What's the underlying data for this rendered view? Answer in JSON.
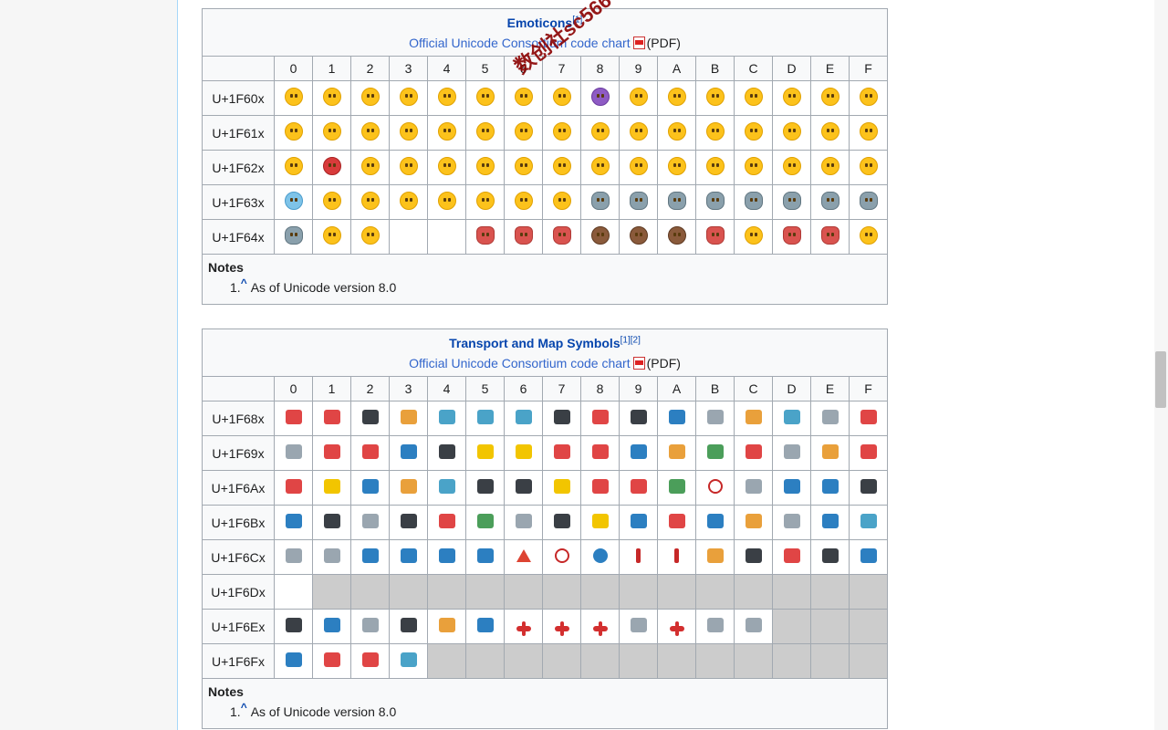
{
  "emoticons": {
    "title": "Emoticons",
    "title_refs": "[1]",
    "chart_link": "Official Unicode Consortium code chart",
    "pdf": "(PDF)",
    "columns": [
      "0",
      "1",
      "2",
      "3",
      "4",
      "5",
      "6",
      "7",
      "8",
      "9",
      "A",
      "B",
      "C",
      "D",
      "E",
      "F"
    ],
    "rows": [
      {
        "label": "U+1F60x",
        "cells": [
          "smile",
          "smile",
          "joy",
          "smile",
          "smile",
          "smile",
          "smile",
          "halo",
          "purple",
          "smile",
          "smile",
          "smile",
          "smile",
          "smile",
          "smile",
          "smile"
        ]
      },
      {
        "label": "U+1F61x",
        "cells": [
          "smile",
          "smile",
          "smile",
          "smile",
          "smile",
          "smile",
          "smile",
          "smile",
          "smile",
          "smile",
          "smile",
          "smile",
          "smile",
          "smile",
          "smile",
          "smile"
        ]
      },
      {
        "label": "U+1F62x",
        "cells": [
          "smile",
          "red",
          "smile",
          "smile",
          "smile",
          "smile",
          "smile",
          "smile",
          "smile",
          "smile",
          "smile",
          "smile",
          "smile",
          "smile",
          "smile",
          "smile"
        ]
      },
      {
        "label": "U+1F63x",
        "cells": [
          "blue",
          "smile",
          "smile",
          "smile",
          "smile",
          "smile",
          "smile",
          "smile",
          "cat",
          "cat",
          "cat",
          "cat",
          "cat",
          "cat",
          "cat",
          "cat"
        ]
      },
      {
        "label": "U+1F64x",
        "cells": [
          "cat",
          "smile",
          "smile",
          "",
          "",
          "person",
          "person",
          "person",
          "monkey",
          "monkey",
          "monkey",
          "person",
          "smile",
          "person",
          "person",
          "smile"
        ]
      }
    ],
    "notes_heading": "Notes",
    "notes": [
      {
        "marker": "1.",
        "caret": "^",
        "text": "As of Unicode version 8.0"
      }
    ]
  },
  "transport": {
    "title": "Transport and Map Symbols",
    "title_refs": "[1][2]",
    "chart_link": "Official Unicode Consortium code chart",
    "pdf": "(PDF)",
    "columns": [
      "0",
      "1",
      "2",
      "3",
      "4",
      "5",
      "6",
      "7",
      "8",
      "9",
      "A",
      "B",
      "C",
      "D",
      "E",
      "F"
    ],
    "rows": [
      {
        "label": "U+1F68x",
        "cells": [
          "r",
          "r",
          "k",
          "o",
          "t",
          "t",
          "t",
          "k",
          "r",
          "k",
          "b",
          "g",
          "o",
          "t",
          "g",
          "r"
        ]
      },
      {
        "label": "U+1F69x",
        "cells": [
          "g",
          "r",
          "r",
          "b",
          "k",
          "y",
          "y",
          "r",
          "r",
          "b",
          "o",
          "gr",
          "r",
          "g",
          "o",
          "r"
        ]
      },
      {
        "label": "U+1F6Ax",
        "cells": [
          "r",
          "y",
          "b",
          "o",
          "t",
          "k",
          "k",
          "y",
          "r",
          "r",
          "gr",
          "prohib",
          "g",
          "b",
          "b",
          "k"
        ]
      },
      {
        "label": "U+1F6Bx",
        "cells": [
          "b",
          "k",
          "g",
          "k",
          "r",
          "gr",
          "g",
          "k",
          "y",
          "b",
          "r",
          "b",
          "o",
          "g",
          "b",
          "t"
        ]
      },
      {
        "label": "U+1F6Cx",
        "cells": [
          "g",
          "g",
          "b",
          "b",
          "b",
          "b",
          "tri",
          "prohib",
          "circ",
          "fig",
          "fig",
          "o",
          "k",
          "r",
          "k",
          "b"
        ]
      },
      {
        "label": "U+1F6Dx",
        "cells": [
          "",
          "X",
          "X",
          "X",
          "X",
          "X",
          "X",
          "X",
          "X",
          "X",
          "X",
          "X",
          "X",
          "X",
          "X",
          "X"
        ]
      },
      {
        "label": "U+1F6Ex",
        "cells": [
          "k",
          "b",
          "g",
          "k",
          "o",
          "b",
          "plane",
          "plane",
          "plane",
          "g",
          "plane",
          "g",
          "g",
          "X",
          "X",
          "X"
        ]
      },
      {
        "label": "U+1F6Fx",
        "cells": [
          "b",
          "r",
          "r",
          "t",
          "X",
          "X",
          "X",
          "X",
          "X",
          "X",
          "X",
          "X",
          "X",
          "X",
          "X",
          "X"
        ]
      }
    ],
    "notes_heading": "Notes",
    "notes": [
      {
        "marker": "1.",
        "caret": "^",
        "text": "As of Unicode version 8.0"
      }
    ]
  },
  "watermark": "数创社sc566"
}
